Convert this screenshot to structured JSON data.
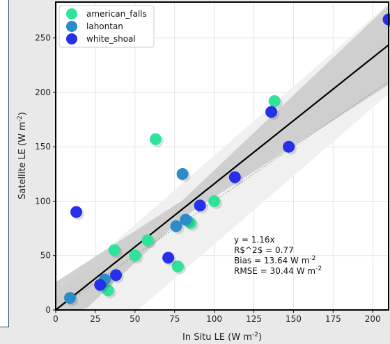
{
  "chart_data": {
    "type": "scatter",
    "xlabel": "In Situ LE (W m$^{-2}$)",
    "ylabel": "Satellite LE (W m$^{-2}$)",
    "xlim": [
      0,
      210
    ],
    "ylim": [
      0,
      283
    ],
    "xticks": [
      "0",
      "25",
      "50",
      "75",
      "100",
      "125",
      "150",
      "175",
      "200"
    ],
    "yticks": [
      "0",
      "50",
      "100",
      "150",
      "200",
      "250"
    ],
    "grid": true,
    "legend_position": "top-left",
    "series": [
      {
        "name": "american_falls",
        "color": "#2fe39b",
        "points": [
          [
            33,
            18
          ],
          [
            37,
            55
          ],
          [
            50,
            50
          ],
          [
            58,
            64
          ],
          [
            63,
            157
          ],
          [
            77,
            40
          ],
          [
            85,
            80
          ],
          [
            100,
            100
          ],
          [
            138,
            192
          ]
        ]
      },
      {
        "name": "lahontan",
        "color": "#2b8cc8",
        "points": [
          [
            9,
            11
          ],
          [
            31,
            28
          ],
          [
            76,
            77
          ],
          [
            80,
            125
          ],
          [
            82,
            83
          ]
        ]
      },
      {
        "name": "white_shoal",
        "color": "#2530e8",
        "points": [
          [
            13,
            90
          ],
          [
            28,
            23
          ],
          [
            38,
            32
          ],
          [
            71,
            48
          ],
          [
            91,
            96
          ],
          [
            113,
            122
          ],
          [
            136,
            182
          ],
          [
            147,
            150
          ],
          [
            210,
            267
          ]
        ]
      }
    ],
    "fit_line": {
      "slope": 1.16,
      "color": "#000000"
    },
    "reference_line": {
      "slope": 1.0,
      "style": "dotted",
      "color": "#888888"
    },
    "stats_lines": [
      "y = 1.16x",
      "R$^2$ = 0.77",
      "Bias = 13.64 W m$^{-2}$",
      "RMSE = 30.44 W m$^{-2}$"
    ]
  }
}
